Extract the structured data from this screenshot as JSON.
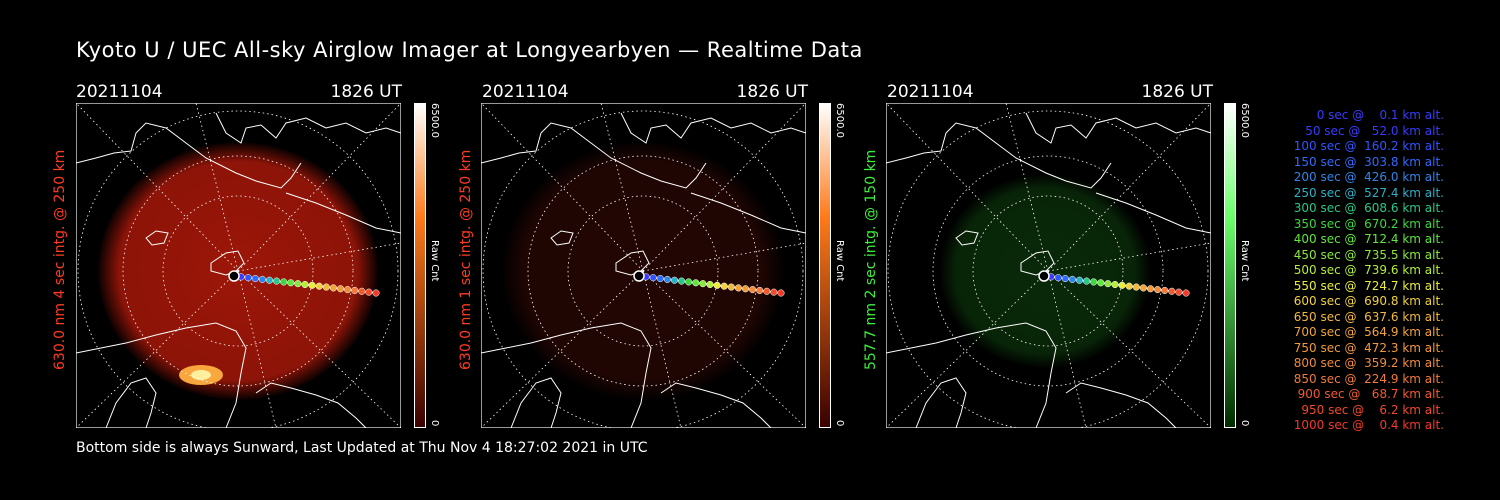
{
  "title": "Kyoto U / UEC All-sky Airglow Imager at Longyearbyen — Realtime Data",
  "footer": "Bottom side is always Sunward, Last Updated at Thu Nov  4 18:27:02 2021 in UTC",
  "panels": [
    {
      "date": "20211104",
      "time": "1826 UT",
      "label": "630.0 nm 4 sec intg. @ 250 km",
      "label_color": "#ff3b1f",
      "cbar_max": "6500.0",
      "cbar_unit": "Raw Cnt",
      "cbar_min": "0",
      "cbar_top_color": "#ffffff",
      "cbar_mid_color": "#ff7a1a",
      "cbar_bottom_color": "#3a0000",
      "glow_color": "#b81a0a",
      "glow_brightness": 0.85
    },
    {
      "date": "20211104",
      "time": "1826 UT",
      "label": "630.0 nm 1 sec intg. @ 250 km",
      "label_color": "#ff3b1f",
      "cbar_max": "6500.0",
      "cbar_unit": "Raw Cnt",
      "cbar_min": "0",
      "cbar_top_color": "#ffffff",
      "cbar_mid_color": "#ff7a1a",
      "cbar_bottom_color": "#3a0000",
      "glow_color": "#3a0a06",
      "glow_brightness": 0.6
    },
    {
      "date": "20211104",
      "time": "1826 UT",
      "label": "557.7 nm 2 sec intg. @ 150 km",
      "label_color": "#3cf03c",
      "cbar_max": "6500.0",
      "cbar_unit": "Raw Cnt",
      "cbar_min": "0",
      "cbar_top_color": "#ffffff",
      "cbar_mid_color": "#6aff6a",
      "cbar_bottom_color": "#002a00",
      "glow_color": "#0d3a0d",
      "glow_brightness": 0.7
    }
  ],
  "trajectory_legend": [
    {
      "text": "0 sec @    0.1 km alt.",
      "color": "#3a3aff"
    },
    {
      "text": "50 sec @   52.0 km alt.",
      "color": "#3a3aff"
    },
    {
      "text": "100 sec @  160.2 km alt.",
      "color": "#2f55ff"
    },
    {
      "text": "150 sec @  303.8 km alt.",
      "color": "#2f6bff"
    },
    {
      "text": "200 sec @  426.0 km alt.",
      "color": "#2e86e8"
    },
    {
      "text": "250 sec @  527.4 km alt.",
      "color": "#2bb0c8"
    },
    {
      "text": "300 sec @  608.6 km alt.",
      "color": "#27c88a"
    },
    {
      "text": "350 sec @  670.2 km alt.",
      "color": "#3ad83a"
    },
    {
      "text": "400 sec @  712.4 km alt.",
      "color": "#5ee63a"
    },
    {
      "text": "450 sec @  735.5 km alt.",
      "color": "#8ae83a"
    },
    {
      "text": "500 sec @  739.6 km alt.",
      "color": "#b6ee3a"
    },
    {
      "text": "550 sec @  724.7 km alt.",
      "color": "#e8ee3a"
    },
    {
      "text": "600 sec @  690.8 km alt.",
      "color": "#f2d23a"
    },
    {
      "text": "650 sec @  637.6 km alt.",
      "color": "#f2b83a"
    },
    {
      "text": "700 sec @  564.9 km alt.",
      "color": "#f2a43a"
    },
    {
      "text": "750 sec @  472.3 km alt.",
      "color": "#f29a3a"
    },
    {
      "text": "800 sec @  359.2 km alt.",
      "color": "#f28a3a"
    },
    {
      "text": "850 sec @  224.9 km alt.",
      "color": "#f27a3a"
    },
    {
      "text": "900 sec @   68.7 km alt.",
      "color": "#f25a2a"
    },
    {
      "text": "950 sec @    6.2 km alt.",
      "color": "#f24a2a"
    },
    {
      "text": "1000 sec @    0.4 km alt.",
      "color": "#f23a2a"
    }
  ]
}
